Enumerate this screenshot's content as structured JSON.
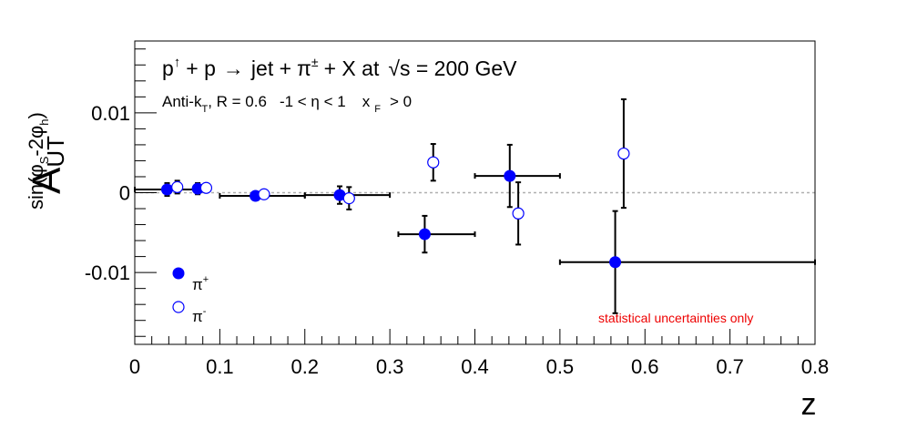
{
  "chart_data": {
    "type": "scatter",
    "title_parts": {
      "p": "p",
      "arrow_up": "↑",
      "plus1": "+ p",
      "arrow": "→",
      "rest1": "jet +",
      "pi": "π",
      "pi_sup": "±",
      "rest2": "+ X at",
      "sqrt": "√s = 200 GeV"
    },
    "subtitle_parts": {
      "antik": "Anti-k",
      "antik_sub": "T",
      "r": ", R = 0.6",
      "eta": "-1 <  η < 1",
      "xf": "x",
      "xf_sub": "F",
      "xf_rest": "> 0"
    },
    "ylabel_parts": {
      "main": "A",
      "sub": "UT",
      "sup": "sin(φ",
      "sup_sub1": "S",
      "sup_mid": "-2φ",
      "sup_sub2": "h",
      "sup_end": ")"
    },
    "xlabel": "z",
    "xlim": [
      0,
      0.8
    ],
    "ylim": [
      -0.019,
      0.019
    ],
    "x_ticks": [
      "0",
      "0.1",
      "0.2",
      "0.3",
      "0.4",
      "0.5",
      "0.6",
      "0.7",
      "0.8"
    ],
    "x_tick_values": [
      0,
      0.1,
      0.2,
      0.3,
      0.4,
      0.5,
      0.6,
      0.7,
      0.8
    ],
    "y_ticks": [
      "-0.01",
      "0",
      "0.01"
    ],
    "y_tick_values": [
      -0.01,
      0,
      0.01
    ],
    "zero_line": true,
    "annotation": "statistical uncertainties only",
    "annotation_color": "#ee0000",
    "series": [
      {
        "name": "π",
        "name_sup": "+",
        "marker": "filled",
        "color": "#0000ff",
        "points": [
          {
            "x": 0.038,
            "y": 0.0004,
            "xerr": [
              0.038,
              0.032
            ],
            "yerr": 0.0008
          },
          {
            "x": 0.074,
            "y": 0.0005,
            "xerr": [
              0.0,
              0.0
            ],
            "yerr": 0.0007
          },
          {
            "x": 0.142,
            "y": -0.0004,
            "xerr": [
              0.042,
              0.058
            ],
            "yerr": 0.0005
          },
          {
            "x": 0.241,
            "y": -0.0003,
            "xerr": [
              0.041,
              0.059
            ],
            "yerr": 0.0011
          },
          {
            "x": 0.341,
            "y": -0.0052,
            "xerr": [
              0.031,
              0.059
            ],
            "yerr": 0.0023
          },
          {
            "x": 0.441,
            "y": 0.0021,
            "xerr": [
              0.041,
              0.059
            ],
            "yerr": 0.0039
          },
          {
            "x": 0.565,
            "y": -0.0087,
            "xerr": [
              0.065,
              0.235
            ],
            "yerr": 0.0064
          }
        ]
      },
      {
        "name": "π",
        "name_sup": "-",
        "marker": "open",
        "color": "#0000ff",
        "points": [
          {
            "x": 0.05,
            "y": 0.0007,
            "xerr": [
              0.0,
              0.0
            ],
            "yerr": 0.0008
          },
          {
            "x": 0.084,
            "y": 0.0006,
            "xerr": [
              0.0,
              0.0
            ],
            "yerr": 0.0004
          },
          {
            "x": 0.152,
            "y": -0.0002,
            "xerr": [
              0.0,
              0.0
            ],
            "yerr": 0.0004
          },
          {
            "x": 0.252,
            "y": -0.0007,
            "xerr": [
              0.0,
              0.0
            ],
            "yerr": 0.0014
          },
          {
            "x": 0.351,
            "y": 0.0038,
            "xerr": [
              0.0,
              0.0
            ],
            "yerr": 0.0023
          },
          {
            "x": 0.451,
            "y": -0.0026,
            "xerr": [
              0.0,
              0.0
            ],
            "yerr": 0.0039
          },
          {
            "x": 0.575,
            "y": 0.0049,
            "xerr": [
              0.0,
              0.0
            ],
            "yerr": 0.0068
          }
        ]
      }
    ]
  }
}
